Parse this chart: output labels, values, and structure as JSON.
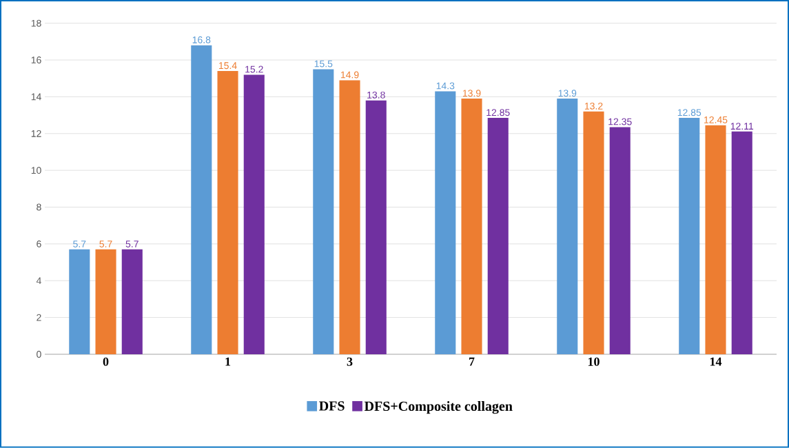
{
  "chart_data": {
    "type": "bar",
    "categories": [
      "0",
      "1",
      "3",
      "7",
      "10",
      "14"
    ],
    "series": [
      {
        "name": "DFS",
        "color": "#5b9bd5",
        "values": [
          5.7,
          16.8,
          15.5,
          14.3,
          13.9,
          12.85
        ]
      },
      {
        "color": "#ed7d31",
        "values": [
          5.7,
          15.4,
          14.9,
          13.9,
          13.2,
          12.45
        ]
      },
      {
        "name": "DFS+Composite collagen",
        "color": "#7030a0",
        "values": [
          5.7,
          15.2,
          13.8,
          12.85,
          12.35,
          12.11
        ]
      }
    ],
    "ylim": [
      0,
      18
    ],
    "yticks": [
      0,
      2,
      4,
      6,
      8,
      10,
      12,
      14,
      16,
      18
    ],
    "grid": "y",
    "legend": "bottom",
    "data_labels": true
  }
}
